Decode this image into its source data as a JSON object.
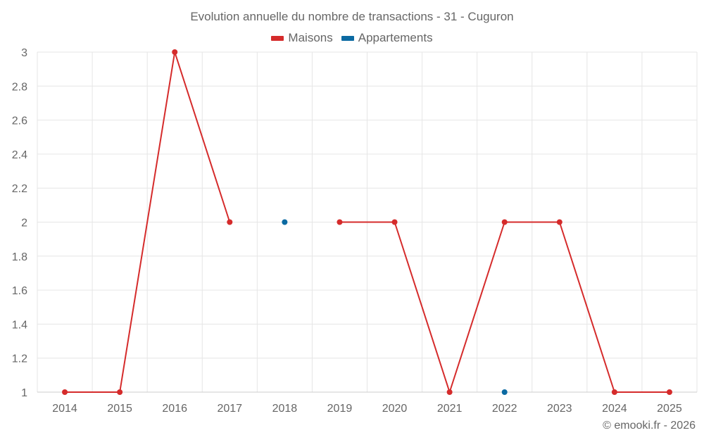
{
  "chart_data": {
    "type": "line",
    "title": "Evolution annuelle du nombre de transactions - 31 - Cuguron",
    "categories": [
      "2014",
      "2015",
      "2016",
      "2017",
      "2018",
      "2019",
      "2020",
      "2021",
      "2022",
      "2023",
      "2024",
      "2025"
    ],
    "ylim": [
      1,
      3
    ],
    "yticks": [
      1,
      1.2,
      1.4,
      1.6,
      1.8,
      2,
      2.2,
      2.4,
      2.6,
      2.8,
      3
    ],
    "grid": true,
    "legend_position": "top-center",
    "series": [
      {
        "name": "Maisons",
        "color": "#d52b2b",
        "values": [
          1,
          1,
          3,
          2,
          null,
          2,
          2,
          1,
          2,
          2,
          1,
          1
        ]
      },
      {
        "name": "Appartements",
        "color": "#0b6aa2",
        "values": [
          null,
          null,
          null,
          null,
          2,
          null,
          null,
          null,
          1,
          null,
          null,
          null
        ]
      }
    ]
  },
  "credit": "© emooki.fr - 2026"
}
